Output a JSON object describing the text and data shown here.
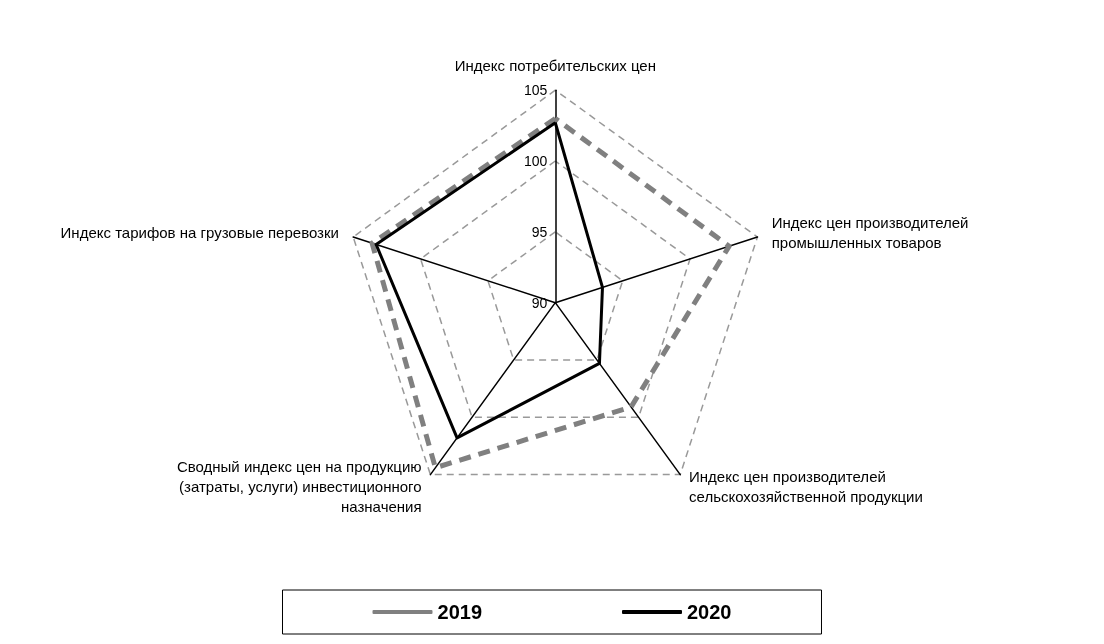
{
  "chart_data": {
    "type": "radar",
    "categories": [
      "Индекс потребительских цен",
      "Индекс цен производителей промышленных товаров",
      "Индекс цен производителей сельскохозяйственной продукции",
      "Сводный индекс цен на продукцию (затраты, услуги) инвестиционного назначения",
      "Индекс тарифов на грузовые перевозки"
    ],
    "series": [
      {
        "name": "2019",
        "color": "#808080",
        "line_style": "dashed",
        "values": [
          103.0,
          102.9,
          99.1,
          104.4,
          103.6
        ]
      },
      {
        "name": "2020",
        "color": "#000000",
        "line_style": "solid",
        "values": [
          102.7,
          93.5,
          95.3,
          101.8,
          103.3
        ]
      }
    ],
    "ylim": [
      90,
      105
    ],
    "yticks": [
      90,
      95,
      100,
      105
    ],
    "grid": true,
    "legend": "bottom",
    "marker": "none"
  }
}
